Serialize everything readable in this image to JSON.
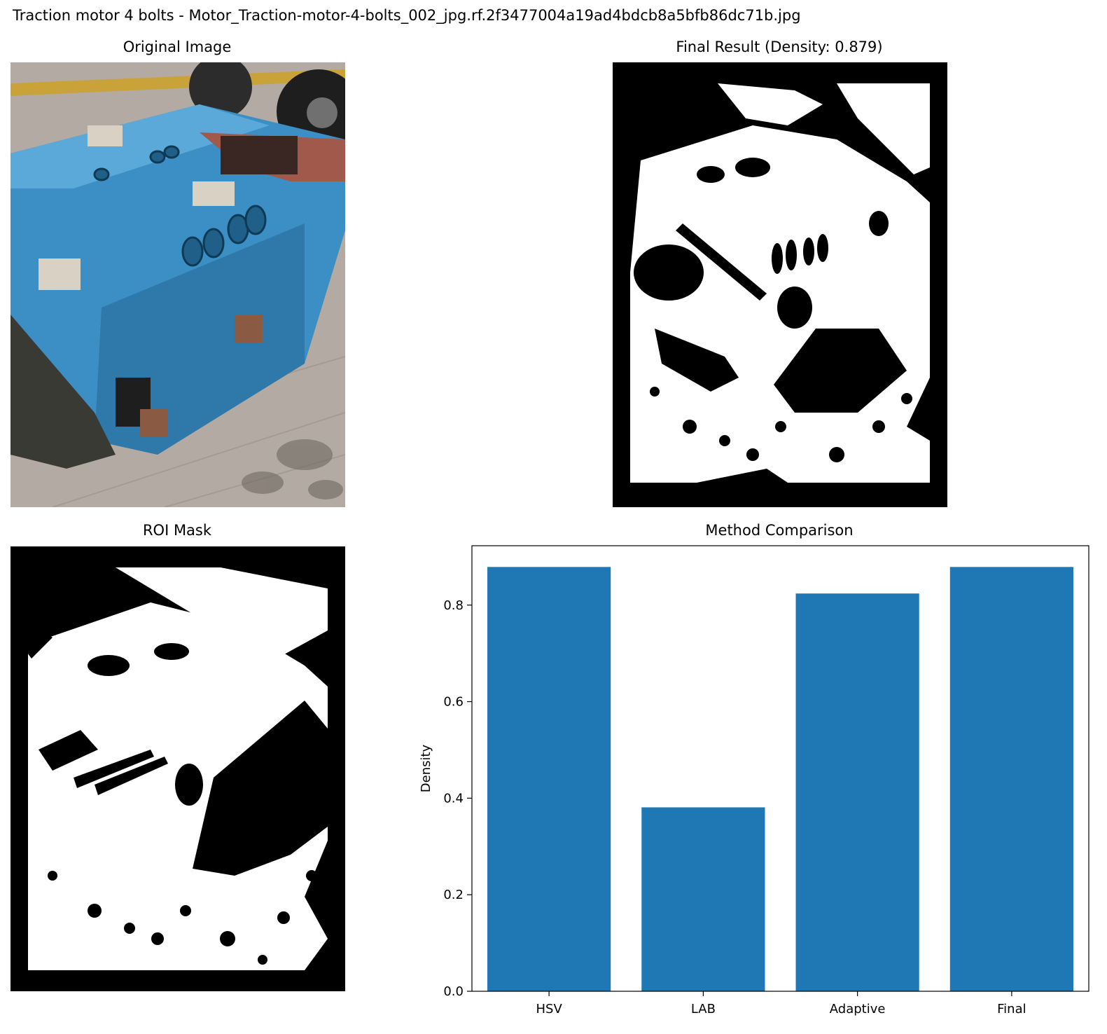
{
  "figure": {
    "suptitle": "Traction motor 4 bolts - Motor_Traction-motor-4-bolts_002_jpg.rf.2f3477004a19ad4bdcb8a5bfb86dc71b.jpg"
  },
  "panels": {
    "original": {
      "title": "Original Image"
    },
    "final": {
      "title": "Final Result (Density: 0.879)"
    },
    "roi": {
      "title": "ROI Mask"
    },
    "comparison": {
      "title": "Method Comparison"
    }
  },
  "chart_data": {
    "type": "bar",
    "title": "Method Comparison",
    "categories": [
      "HSV",
      "LAB",
      "Adaptive",
      "Final"
    ],
    "values": [
      0.879,
      0.381,
      0.824,
      0.879
    ],
    "xlabel": "",
    "ylabel": "Density",
    "ylim": [
      0,
      0.923
    ],
    "yticks": [
      "0.0",
      "0.2",
      "0.4",
      "0.6",
      "0.8"
    ],
    "color": "#1f77b4",
    "grid": false
  },
  "colors": {
    "bar": "#1f77b4",
    "mask_foreground": "#ffffff",
    "mask_background": "#000000"
  }
}
